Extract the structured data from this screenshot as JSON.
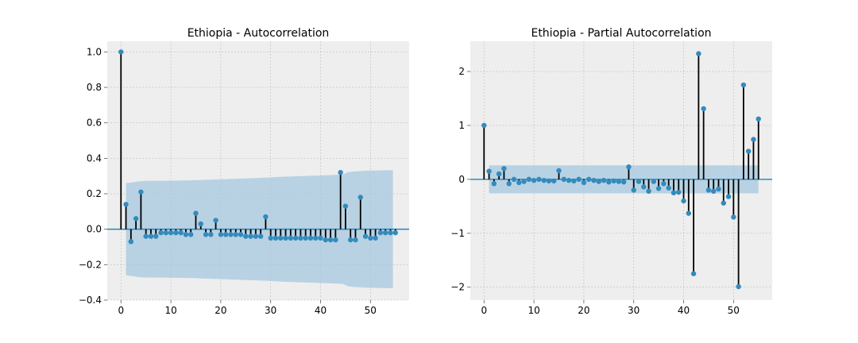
{
  "chart_data": [
    {
      "type": "stem",
      "title": "Ethiopia - Autocorrelation",
      "xlabel": "",
      "ylabel": "",
      "xlim": [
        -2.75,
        57.75
      ],
      "ylim": [
        -0.4,
        1.06
      ],
      "xticks": [
        0,
        10,
        20,
        30,
        40,
        50
      ],
      "yticks": [
        -0.4,
        -0.2,
        0.0,
        0.2,
        0.4,
        0.6,
        0.8,
        1.0
      ],
      "ytick_labels": [
        "−0.4",
        "−0.2",
        "0.0",
        "0.2",
        "0.4",
        "0.6",
        "0.8",
        "1.0"
      ],
      "grid": true,
      "colors": {
        "stem": "#000000",
        "marker": "#348abd",
        "band": "#a6c8df",
        "background": "#eeeeee",
        "grid": "#bdbdbd",
        "zero_line": "#348abd"
      },
      "lags": [
        0,
        1,
        2,
        3,
        4,
        5,
        6,
        7,
        8,
        9,
        10,
        11,
        12,
        13,
        14,
        15,
        16,
        17,
        18,
        19,
        20,
        21,
        22,
        23,
        24,
        25,
        26,
        27,
        28,
        29,
        30,
        31,
        32,
        33,
        34,
        35,
        36,
        37,
        38,
        39,
        40,
        41,
        42,
        43,
        44,
        45,
        46,
        47,
        48,
        49,
        50,
        51,
        52,
        53,
        54,
        55
      ],
      "values": [
        1.0,
        0.14,
        -0.07,
        0.06,
        0.21,
        -0.04,
        -0.04,
        -0.04,
        -0.02,
        -0.02,
        -0.02,
        -0.02,
        -0.02,
        -0.03,
        -0.03,
        0.09,
        0.03,
        -0.03,
        -0.03,
        0.05,
        -0.03,
        -0.03,
        -0.03,
        -0.03,
        -0.03,
        -0.04,
        -0.04,
        -0.04,
        -0.04,
        0.07,
        -0.05,
        -0.05,
        -0.05,
        -0.05,
        -0.05,
        -0.05,
        -0.05,
        -0.05,
        -0.05,
        -0.05,
        -0.05,
        -0.06,
        -0.06,
        -0.06,
        0.32,
        0.13,
        -0.06,
        -0.06,
        0.18,
        -0.04,
        -0.05,
        -0.05,
        -0.02,
        -0.02,
        -0.02,
        -0.02
      ],
      "confidence_upper": [
        0.26,
        0.262,
        0.265,
        0.27,
        0.272,
        0.273,
        0.273,
        0.273,
        0.273,
        0.274,
        0.274,
        0.274,
        0.275,
        0.275,
        0.276,
        0.277,
        0.278,
        0.279,
        0.28,
        0.281,
        0.282,
        0.283,
        0.284,
        0.285,
        0.286,
        0.287,
        0.288,
        0.289,
        0.29,
        0.291,
        0.293,
        0.295,
        0.296,
        0.297,
        0.298,
        0.299,
        0.3,
        0.301,
        0.302,
        0.303,
        0.304,
        0.305,
        0.306,
        0.307,
        0.309,
        0.322,
        0.325,
        0.327,
        0.329,
        0.33,
        0.331,
        0.331,
        0.332,
        0.332,
        0.333
      ]
    },
    {
      "type": "stem",
      "title": "Ethiopia - Partial Autocorrelation",
      "xlabel": "",
      "ylabel": "",
      "xlim": [
        -2.75,
        57.75
      ],
      "ylim": [
        -2.24,
        2.56
      ],
      "xticks": [
        0,
        10,
        20,
        30,
        40,
        50
      ],
      "yticks": [
        -2,
        -1,
        0,
        1,
        2
      ],
      "ytick_labels": [
        "−2",
        "−1",
        "0",
        "1",
        "2"
      ],
      "grid": true,
      "colors": {
        "stem": "#000000",
        "marker": "#348abd",
        "band": "#a6c8df",
        "background": "#eeeeee",
        "grid": "#bdbdbd",
        "zero_line": "#348abd"
      },
      "lags": [
        0,
        1,
        2,
        3,
        4,
        5,
        6,
        7,
        8,
        9,
        10,
        11,
        12,
        13,
        14,
        15,
        16,
        17,
        18,
        19,
        20,
        21,
        22,
        23,
        24,
        25,
        26,
        27,
        28,
        29,
        30,
        31,
        32,
        33,
        34,
        35,
        36,
        37,
        38,
        39,
        40,
        41,
        42,
        43,
        44,
        45,
        46,
        47,
        48,
        49,
        50,
        51,
        52,
        53,
        54,
        55
      ],
      "values": [
        1.0,
        0.15,
        -0.08,
        0.1,
        0.2,
        -0.08,
        0.0,
        -0.06,
        -0.04,
        0.0,
        -0.02,
        0.0,
        -0.02,
        -0.03,
        -0.03,
        0.16,
        0.0,
        -0.02,
        -0.03,
        0.0,
        -0.06,
        0.0,
        -0.02,
        -0.04,
        -0.02,
        -0.05,
        -0.03,
        -0.04,
        -0.05,
        0.23,
        -0.2,
        -0.04,
        -0.14,
        -0.22,
        -0.04,
        -0.17,
        -0.08,
        -0.16,
        -0.25,
        -0.24,
        -0.4,
        -0.63,
        -1.75,
        2.33,
        1.31,
        -0.2,
        -0.22,
        -0.18,
        -0.44,
        -0.32,
        -0.7,
        -1.99,
        1.75,
        0.52,
        0.74,
        1.12
      ],
      "confidence_upper": 0.26
    }
  ]
}
